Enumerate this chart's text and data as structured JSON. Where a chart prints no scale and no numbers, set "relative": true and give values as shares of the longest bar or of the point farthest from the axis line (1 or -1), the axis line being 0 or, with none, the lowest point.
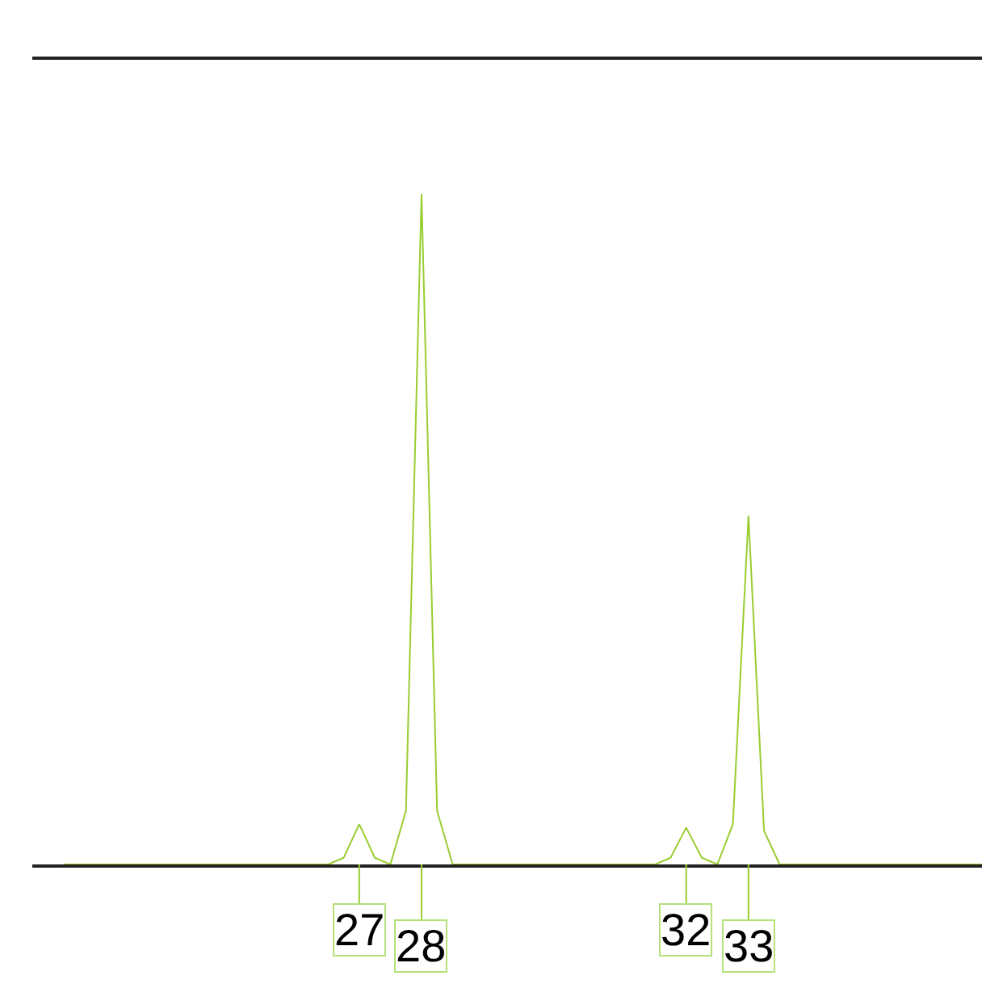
{
  "chart_data": {
    "type": "line",
    "relative": true,
    "color": "#9acd32",
    "categories": [
      null,
      null,
      null,
      null,
      null,
      null,
      null,
      null,
      null,
      null,
      null,
      null,
      null,
      null,
      null,
      null,
      null,
      null,
      null,
      "27",
      null,
      null,
      null,
      "28",
      null,
      null,
      null,
      null,
      null,
      null,
      null,
      null,
      null,
      null,
      null,
      null,
      null,
      null,
      null,
      null,
      "32",
      null,
      null,
      null,
      "33",
      null,
      null,
      null,
      null,
      null,
      null,
      null,
      null,
      null,
      null,
      null,
      null,
      null,
      null,
      null
    ],
    "values": [
      0,
      0,
      0,
      0,
      0,
      0,
      0,
      0,
      0,
      0,
      0,
      0,
      0,
      0,
      0,
      0,
      0,
      0,
      0.01,
      0.06,
      0.01,
      0,
      0.08,
      1,
      0.08,
      0,
      0,
      0,
      0,
      0,
      0,
      0,
      0,
      0,
      0,
      0,
      0,
      0,
      0,
      0.01,
      0.055,
      0.01,
      0,
      0.06,
      0.52,
      0.05,
      0,
      0,
      0,
      0,
      0,
      0,
      0,
      0,
      0,
      0,
      0,
      0,
      0,
      0
    ],
    "legend": false,
    "marker": "none",
    "line_style": "solid"
  }
}
